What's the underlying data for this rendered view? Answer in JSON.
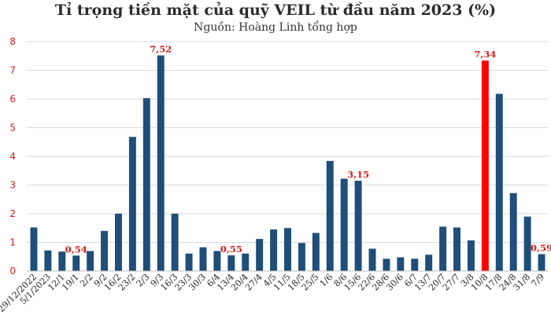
{
  "chart_data": {
    "type": "bar",
    "title": "Tỉ trọng tiền mặt của quỹ VEIL từ đầu năm 2023 (%)",
    "subtitle": "Nguồn: Hoàng Linh tổng hợp",
    "xlabel": "",
    "ylabel": "",
    "ylim": [
      0,
      8
    ],
    "yticks": [
      "0",
      "1",
      "2",
      "3",
      "4",
      "5",
      "6",
      "7",
      "8"
    ],
    "grid": true,
    "legend": "none",
    "colors": {
      "bar": "#1f4e79",
      "highlight": "#ff0000",
      "grid": "#d9d9d9",
      "tick_label": "#d11a1a",
      "data_label": "#d11a1a"
    },
    "categories": [
      "29/12/2022",
      "5/1/2023",
      "12/1",
      "19/1",
      "2/2",
      "9/2",
      "16/2",
      "23/2",
      "2/3",
      "9/3",
      "16/3",
      "23/3",
      "30/3",
      "6/4",
      "13/4",
      "20/4",
      "27/4",
      "4/5",
      "11/5",
      "18/5",
      "25/5",
      "1/6",
      "8/6",
      "15/6",
      "22/6",
      "28/6",
      "30/6",
      "6/7",
      "13/7",
      "20/7",
      "27/7",
      "3/8",
      "10/8",
      "17/8",
      "24/8",
      "31/8",
      "7/9"
    ],
    "values": [
      1.52,
      0.72,
      0.68,
      0.54,
      0.7,
      1.4,
      2.0,
      4.68,
      6.03,
      7.52,
      2.0,
      0.61,
      0.83,
      0.7,
      0.55,
      0.61,
      1.12,
      1.45,
      1.5,
      0.98,
      1.33,
      3.84,
      3.22,
      3.15,
      0.78,
      0.43,
      0.48,
      0.43,
      0.57,
      1.55,
      1.52,
      1.07,
      7.34,
      6.18,
      2.72,
      1.9,
      0.59
    ],
    "highlight_index": 32,
    "data_labels": [
      {
        "index": 3,
        "text": "0,54"
      },
      {
        "index": 9,
        "text": "7,52"
      },
      {
        "index": 14,
        "text": "0,55"
      },
      {
        "index": 23,
        "text": "3,15"
      },
      {
        "index": 32,
        "text": "7,34"
      },
      {
        "index": 36,
        "text": "0,59"
      }
    ]
  }
}
